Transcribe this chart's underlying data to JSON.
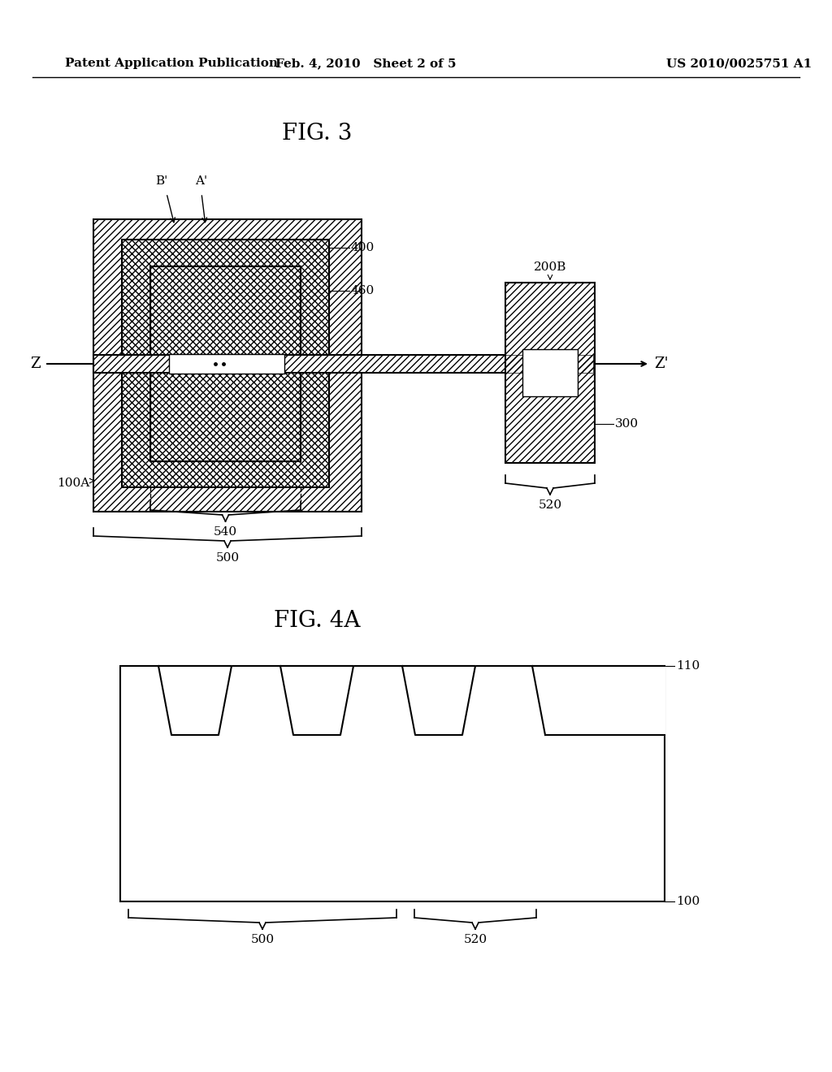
{
  "header_left": "Patent Application Publication",
  "header_mid": "Feb. 4, 2010   Sheet 2 of 5",
  "header_right": "US 2010/0025751 A1",
  "fig3_title": "FIG. 3",
  "fig4a_title": "FIG. 4A",
  "background": "#ffffff",
  "line_color": "#000000"
}
